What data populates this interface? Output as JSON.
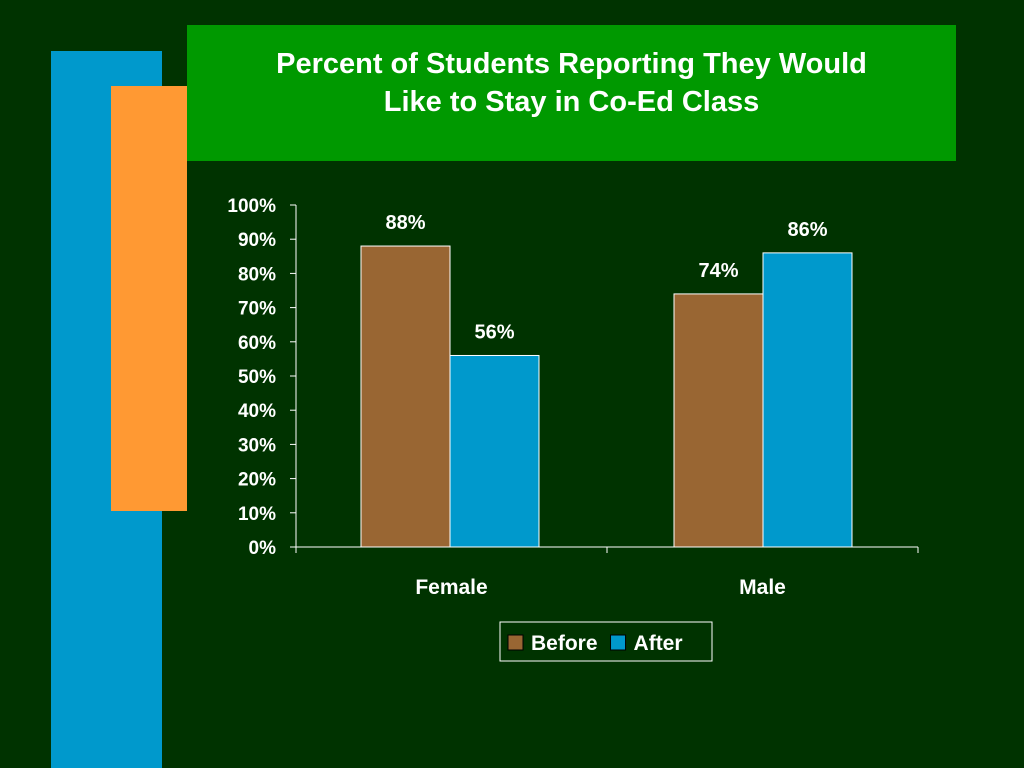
{
  "slide": {
    "title_line1": "Percent of Students Reporting They Would",
    "title_line2": "Like to Stay in Co-Ed Class",
    "colors": {
      "background": "#003300",
      "title_box": "#009900",
      "accent_blue": "#0099CC",
      "accent_orange": "#FF9933"
    }
  },
  "chart_data": {
    "type": "bar",
    "title": "Percent of Students Reporting They Would Like to Stay in Co-Ed Class",
    "categories": [
      "Female",
      "Male"
    ],
    "series": [
      {
        "name": "Before",
        "values": [
          88,
          74
        ],
        "labels": [
          "88%",
          "74%"
        ],
        "color": "#996633"
      },
      {
        "name": "After",
        "values": [
          56,
          86
        ],
        "labels": [
          "56%",
          "86%"
        ],
        "color": "#0099CC"
      }
    ],
    "yticks": [
      "0%",
      "10%",
      "20%",
      "30%",
      "40%",
      "50%",
      "60%",
      "70%",
      "80%",
      "90%",
      "100%"
    ],
    "ylim": [
      0,
      100
    ],
    "xlabel": "",
    "ylabel": "",
    "grid": false,
    "legend": "bottom"
  }
}
